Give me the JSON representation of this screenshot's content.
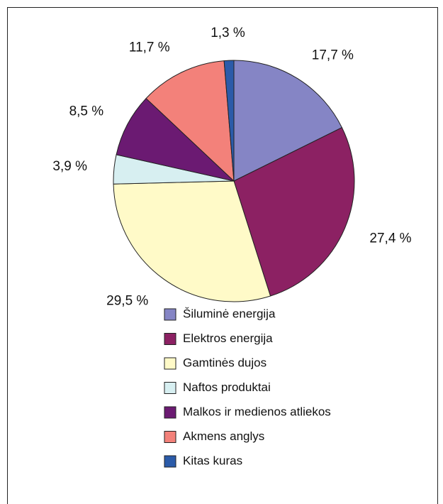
{
  "chart_data": {
    "type": "pie",
    "categories": [
      "Šiluminė energija",
      "Elektros energija",
      "Gamtinės dujos",
      "Naftos produktai",
      "Malkos ir medienos atliekos",
      "Akmens anglys",
      "Kitas kuras"
    ],
    "values": [
      17.7,
      27.4,
      29.5,
      3.9,
      8.5,
      11.7,
      1.3
    ],
    "value_labels": [
      "17,7 %",
      "27,4 %",
      "29,5 %",
      "3,9 %",
      "8,5 %",
      "11,7 %",
      "1,3 %"
    ],
    "colors": [
      "#8585c5",
      "#8c2163",
      "#fffac8",
      "#d7eff1",
      "#6b1a72",
      "#f3817a",
      "#2b5ba9"
    ]
  }
}
